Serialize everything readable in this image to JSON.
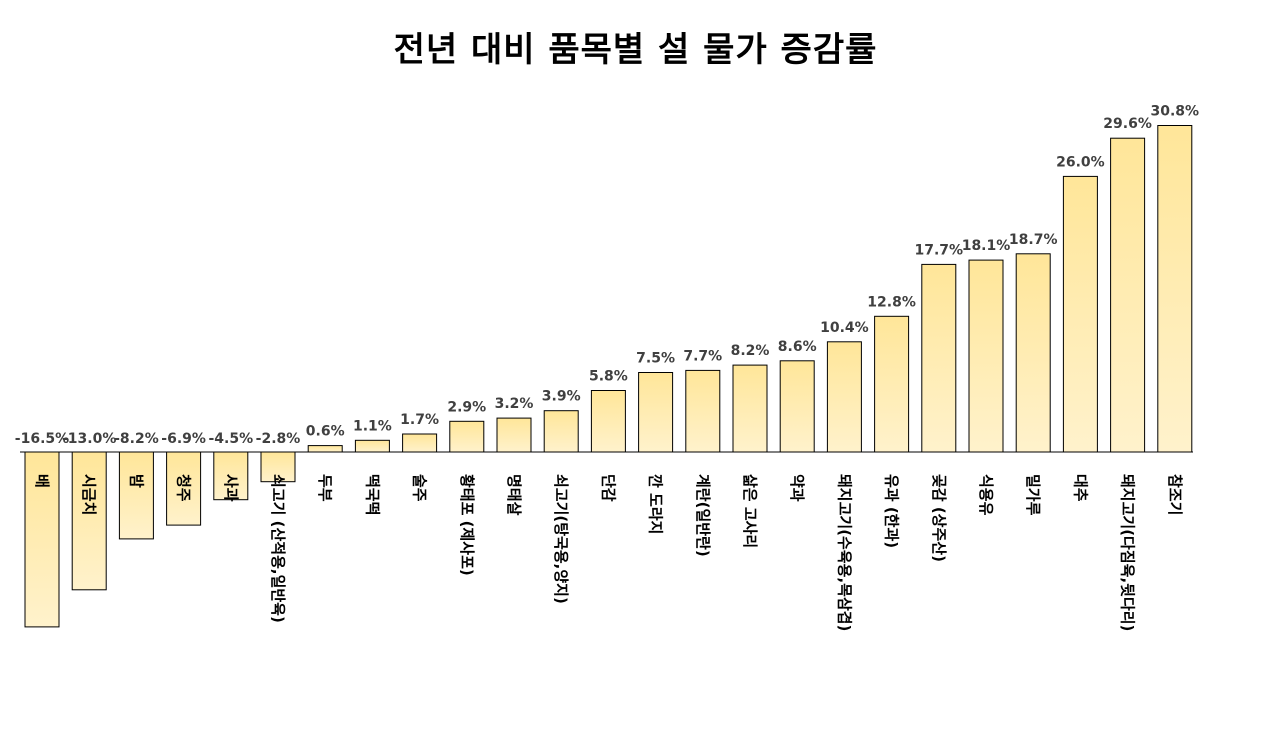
{
  "chart_data": {
    "type": "bar",
    "title": "전년 대비 품목별 설  물가 증감률",
    "xlabel": "",
    "ylabel": "",
    "ylim": [
      -17,
      31
    ],
    "grid": false,
    "legend": "none",
    "bar_color_top": "#FFE699",
    "bar_color_bottom": "#FFF2CC",
    "bar_border": "#000000",
    "categories": [
      "배",
      "시금치",
      "밤",
      "청주",
      "사과",
      "쇠고기 (산적용,일반육)",
      "두부",
      "떡국떡",
      "술주",
      "황태포 (제사포)",
      "명태살",
      "쇠고기(탕국용,양지)",
      "단감",
      "깐 도라지",
      "계란(일반란)",
      "삶은 고사리",
      "약과",
      "돼지고기(수육용,목삼겹)",
      "유과 (한과)",
      "곶감 (상주산)",
      "식용유",
      "밀가루",
      "대추",
      "돼지고기(다짐육,뒷다리)",
      "참조기"
    ],
    "values": [
      -16.5,
      -13.0,
      -8.2,
      -6.9,
      -4.5,
      -2.8,
      0.6,
      1.1,
      1.7,
      2.9,
      3.2,
      3.9,
      5.8,
      7.5,
      7.7,
      8.2,
      8.6,
      10.4,
      12.8,
      17.7,
      18.1,
      18.7,
      26.0,
      29.6,
      30.8
    ],
    "value_labels": [
      "-16.5%",
      "-13.0%",
      "-8.2%",
      "-6.9%",
      "-4.5%",
      "-2.8%",
      "0.6%",
      "1.1%",
      "1.7%",
      "2.9%",
      "3.2%",
      "3.9%",
      "5.8%",
      "7.5%",
      "7.7%",
      "8.2%",
      "8.6%",
      "10.4%",
      "12.8%",
      "17.7%",
      "18.1%",
      "18.7%",
      "26.0%",
      "29.6%",
      "30.8%"
    ]
  }
}
